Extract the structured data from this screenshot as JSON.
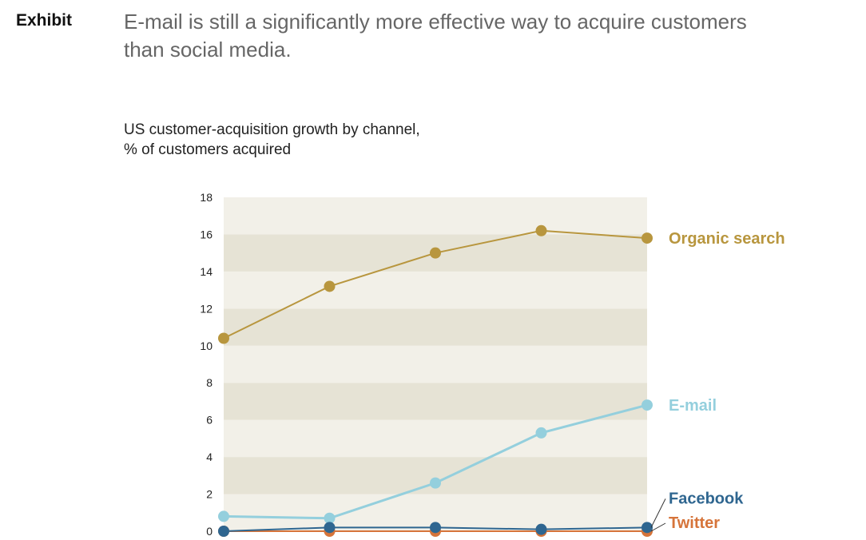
{
  "header": {
    "exhibit": "Exhibit",
    "headline": "E-mail is still a significantly more effective way to acquire customers than social media."
  },
  "chart_data": {
    "type": "line",
    "title": "US customer-acquisition growth by channel,",
    "subtitle": "% of customers acquired",
    "x": [
      1,
      2,
      3,
      4,
      5
    ],
    "ylim": [
      0,
      18
    ],
    "yticks": [
      0,
      2,
      4,
      6,
      8,
      10,
      12,
      14,
      16,
      18
    ],
    "series": [
      {
        "name": "Organic search",
        "color": "#b8963e",
        "values": [
          10.4,
          13.2,
          15.0,
          16.2,
          15.8
        ]
      },
      {
        "name": "E-mail",
        "color": "#94cfdd",
        "values": [
          0.8,
          0.7,
          2.6,
          5.3,
          6.8
        ]
      },
      {
        "name": "Twitter",
        "color": "#d6743a",
        "values": [
          0.0,
          0.0,
          0.0,
          0.0,
          0.0
        ]
      },
      {
        "name": "Facebook",
        "color": "#2f6690",
        "values": [
          0.0,
          0.2,
          0.2,
          0.1,
          0.2
        ]
      }
    ],
    "background": {
      "light": "#f2f0e8",
      "dark": "#e6e3d5"
    }
  }
}
